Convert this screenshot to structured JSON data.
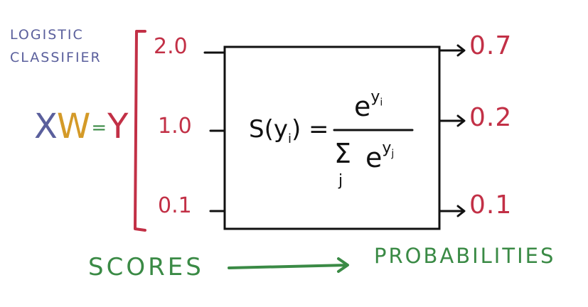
{
  "title": {
    "line1": "LOGISTIC",
    "line2": "CLASSIFIER"
  },
  "equation": {
    "x": "X",
    "w": "W",
    "eq": "=",
    "y": "Y",
    "colors": {
      "x": "#5a5f9c",
      "w": "#d49a28",
      "eq": "#3a8a45",
      "y": "#c23046"
    }
  },
  "scores": [
    "2.0",
    "1.0",
    "0.1"
  ],
  "probabilities": [
    "0.7",
    "0.2",
    "0.1"
  ],
  "softmax": {
    "lhs": "S(y",
    "lhs_sub": "i",
    "lhs_close": ") =",
    "num_base": "e",
    "num_sup": "y",
    "num_sup_sub": "i",
    "sum_symbol": "Σ",
    "sum_index": "j",
    "den_base": "e",
    "den_sup": "y",
    "den_sup_sub": "j"
  },
  "bottom": {
    "left": "SCORES",
    "right": "PROBABILITIES"
  },
  "colors": {
    "red": "#c23046",
    "green": "#3a8a45",
    "purple": "#5a5f9c"
  }
}
